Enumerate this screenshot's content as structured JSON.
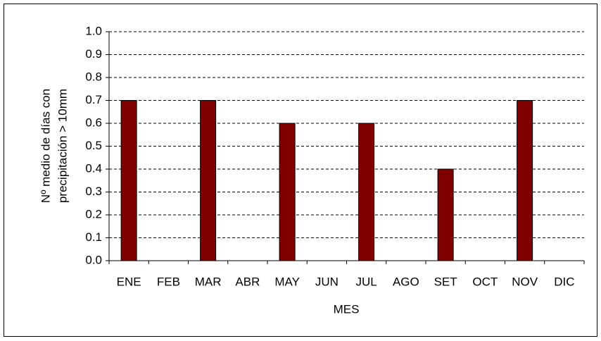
{
  "chart_data": {
    "type": "bar",
    "categories": [
      "ENE",
      "FEB",
      "MAR",
      "ABR",
      "MAY",
      "JUN",
      "JUL",
      "AGO",
      "SET",
      "OCT",
      "NOV",
      "DIC"
    ],
    "values": [
      0.7,
      0,
      0.7,
      0,
      0.6,
      0,
      0.6,
      0,
      0.4,
      0,
      0.7,
      0
    ],
    "color": "#800000",
    "xlabel": "MES",
    "ylabel": [
      "Nº medio de días con",
      "precipitación > 10mm"
    ],
    "ylim": [
      0,
      1
    ],
    "yticks": [
      {
        "value": 0,
        "label": "0.0"
      },
      0.1,
      0.2,
      0.3,
      0.4,
      0.5,
      0.6,
      0.7,
      0.8,
      0.9,
      {
        "value": 1,
        "label": "1.0"
      }
    ],
    "grid": true
  }
}
